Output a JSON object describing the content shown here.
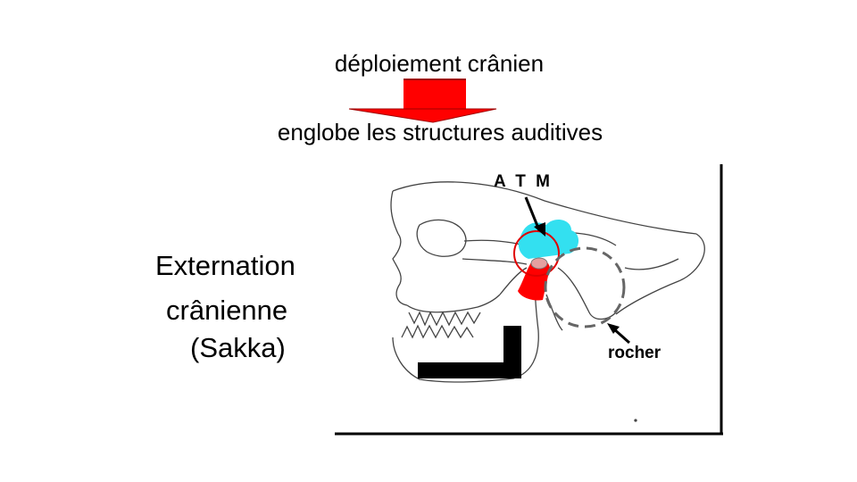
{
  "captions": {
    "top": "déploiement crânien",
    "bottom": "englobe les structures auditives"
  },
  "side_text": {
    "line1": "Externation",
    "line2": "crânienne",
    "line3": "(Sakka)"
  },
  "labels": {
    "atm": "A T M",
    "rocher": "rocher"
  },
  "colors": {
    "arrow": "#ff0000",
    "atm_highlight": "#33e0f0",
    "condyle": "#ff0000",
    "rocher_circle": "#666666"
  }
}
